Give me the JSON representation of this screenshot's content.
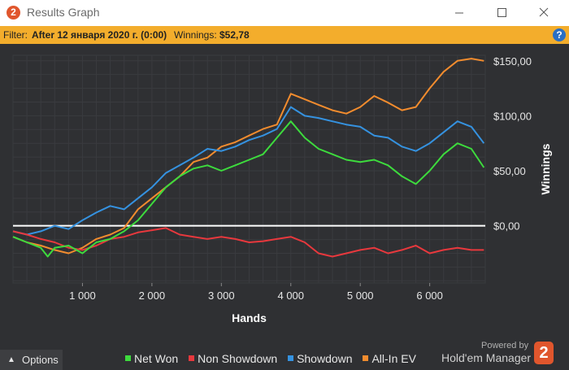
{
  "window": {
    "title": "Results Graph",
    "logo_text": "2"
  },
  "filter": {
    "label": "Filter:",
    "value": "After 12 января 2020 г. (0:00)",
    "winnings_label": "Winnings:",
    "winnings_value": "$52,78",
    "help_text": "?"
  },
  "options": {
    "label": "Options"
  },
  "branding": {
    "powered_by": "Powered by",
    "name": "Hold'em Manager",
    "logo_text": "2"
  },
  "colors": {
    "background": "#2f3033",
    "grid": "#3a3b3f",
    "zero_line": "#ffffff",
    "net_won": "#3ddb3d",
    "non_showdown": "#e8383d",
    "showdown": "#3592e0",
    "all_in_ev": "#f28c2e",
    "accent": "#f3ad2c"
  },
  "chart_data": {
    "type": "line",
    "title": "",
    "xlabel": "Hands",
    "ylabel": "Winnings",
    "xlim": [
      0,
      6800
    ],
    "ylim": [
      -52,
      155
    ],
    "xticks": [
      1000,
      2000,
      3000,
      4000,
      5000,
      6000
    ],
    "xtick_labels": [
      "1 000",
      "2 000",
      "3 000",
      "4 000",
      "5 000",
      "6 000"
    ],
    "yticks": [
      0,
      50,
      100,
      150
    ],
    "ytick_labels": [
      "$0,00",
      "$50,00",
      "$100,00",
      "$150,00"
    ],
    "grid": true,
    "legend_position": "bottom",
    "series": [
      {
        "name": "Net Won",
        "color": "#3ddb3d",
        "x": [
          0,
          200,
          400,
          500,
          600,
          800,
          1000,
          1200,
          1400,
          1600,
          1800,
          2000,
          2200,
          2400,
          2600,
          2800,
          3000,
          3200,
          3400,
          3600,
          3800,
          4000,
          4200,
          4400,
          4600,
          4800,
          5000,
          5200,
          5400,
          5600,
          5800,
          6000,
          6200,
          6400,
          6600,
          6780
        ],
        "y": [
          -10,
          -15,
          -20,
          -28,
          -20,
          -18,
          -25,
          -15,
          -12,
          -5,
          5,
          20,
          35,
          45,
          52,
          55,
          50,
          55,
          60,
          65,
          80,
          95,
          80,
          70,
          65,
          60,
          58,
          60,
          55,
          45,
          38,
          50,
          65,
          75,
          70,
          53
        ]
      },
      {
        "name": "Non Showdown",
        "color": "#e8383d",
        "x": [
          0,
          200,
          400,
          600,
          800,
          1000,
          1200,
          1400,
          1600,
          1800,
          2000,
          2200,
          2400,
          2600,
          2800,
          3000,
          3200,
          3400,
          3600,
          3800,
          4000,
          4200,
          4400,
          4600,
          4800,
          5000,
          5200,
          5400,
          5600,
          5800,
          6000,
          6200,
          6400,
          6600,
          6780
        ],
        "y": [
          -5,
          -8,
          -12,
          -15,
          -20,
          -22,
          -18,
          -12,
          -10,
          -6,
          -4,
          -2,
          -8,
          -10,
          -12,
          -10,
          -12,
          -15,
          -14,
          -12,
          -10,
          -15,
          -25,
          -28,
          -25,
          -22,
          -20,
          -25,
          -22,
          -18,
          -25,
          -22,
          -20,
          -22,
          -22
        ]
      },
      {
        "name": "Showdown",
        "color": "#3592e0",
        "x": [
          0,
          200,
          400,
          600,
          800,
          1000,
          1200,
          1400,
          1600,
          1800,
          2000,
          2200,
          2400,
          2600,
          2800,
          3000,
          3200,
          3400,
          3600,
          3800,
          4000,
          4200,
          4400,
          4600,
          4800,
          5000,
          5200,
          5400,
          5600,
          5800,
          6000,
          6200,
          6400,
          6600,
          6780
        ],
        "y": [
          -5,
          -8,
          -5,
          0,
          -3,
          5,
          12,
          18,
          15,
          25,
          35,
          48,
          55,
          62,
          70,
          68,
          72,
          78,
          82,
          88,
          108,
          100,
          98,
          95,
          92,
          90,
          82,
          80,
          72,
          68,
          75,
          85,
          95,
          90,
          75
        ]
      },
      {
        "name": "All-In EV",
        "color": "#f28c2e",
        "x": [
          0,
          200,
          400,
          600,
          800,
          1000,
          1200,
          1400,
          1600,
          1800,
          2000,
          2200,
          2400,
          2600,
          2800,
          3000,
          3200,
          3400,
          3600,
          3800,
          4000,
          4200,
          4400,
          4600,
          4800,
          5000,
          5200,
          5400,
          5600,
          5800,
          6000,
          6200,
          6400,
          6600,
          6780
        ],
        "y": [
          -10,
          -15,
          -18,
          -22,
          -25,
          -20,
          -12,
          -8,
          -2,
          15,
          25,
          35,
          45,
          58,
          62,
          72,
          76,
          82,
          88,
          92,
          120,
          115,
          110,
          105,
          102,
          108,
          118,
          112,
          105,
          108,
          125,
          140,
          150,
          152,
          150
        ]
      }
    ]
  }
}
